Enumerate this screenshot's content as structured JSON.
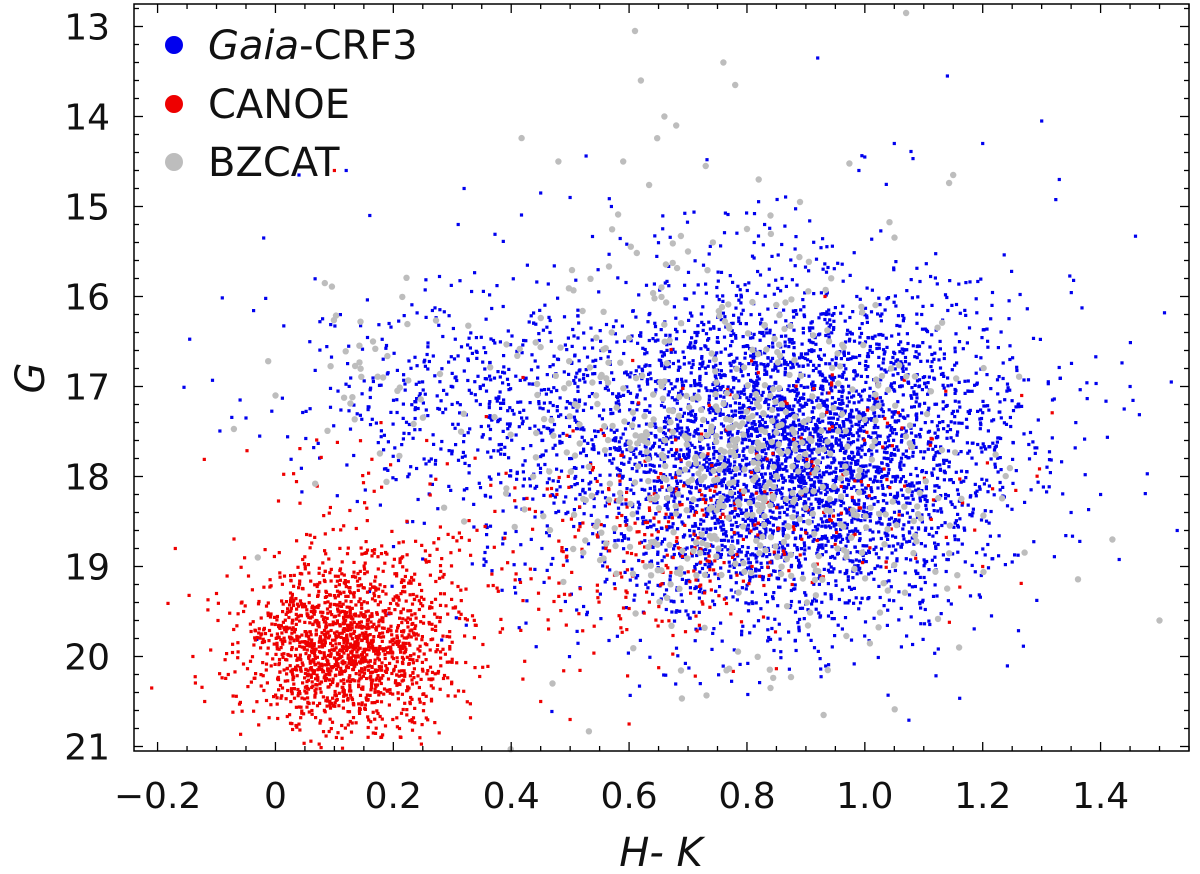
{
  "chart_data": {
    "type": "scatter",
    "title": "",
    "xlabel": "H- K",
    "ylabel": "G",
    "xlim": [
      -0.24,
      1.55
    ],
    "ylim": [
      12.75,
      21.05
    ],
    "y_inverted": true,
    "grid": false,
    "legend_position": "top-left",
    "x_ticks": [
      -0.2,
      0,
      0.2,
      0.4,
      0.6,
      0.8,
      1.0,
      1.2,
      1.4
    ],
    "x_tick_labels": [
      "−0.2",
      "0",
      "0.2",
      "0.4",
      "0.6",
      "0.8",
      "1.0",
      "1.2",
      "1.4"
    ],
    "y_ticks": [
      13,
      14,
      15,
      16,
      17,
      18,
      19,
      20,
      21
    ],
    "y_tick_labels": [
      "13",
      "14",
      "15",
      "16",
      "17",
      "18",
      "19",
      "20",
      "21"
    ],
    "series": [
      {
        "name": "Gaia-CRF3",
        "name_italic": "Gaia",
        "name_rest": "-CRF3",
        "color": "#0000ee",
        "marker": "square",
        "clusters": [
          {
            "n": 2600,
            "cx": 0.87,
            "cy": 17.9,
            "sx": 0.17,
            "sy": 0.85
          },
          {
            "n": 1500,
            "cx": 0.78,
            "cy": 17.6,
            "sx": 0.24,
            "sy": 1.05
          },
          {
            "n": 500,
            "cx": 0.98,
            "cy": 17.2,
            "sx": 0.16,
            "sy": 0.9
          },
          {
            "n": 420,
            "cx": 0.32,
            "cy": 17.1,
            "sx": 0.17,
            "sy": 0.55
          }
        ],
        "points": [
          [
            0.92,
            13.35
          ],
          [
            1.14,
            13.55
          ],
          [
            1.05,
            14.3
          ],
          [
            1.2,
            14.3
          ],
          [
            1.3,
            14.05
          ],
          [
            1.33,
            14.7
          ],
          [
            0.45,
            14.85
          ],
          [
            0.5,
            14.9
          ],
          [
            0.57,
            15.0
          ],
          [
            0.32,
            14.8
          ],
          [
            0.04,
            14.65
          ],
          [
            -0.02,
            15.35
          ],
          [
            0.16,
            15.1
          ],
          [
            0.31,
            15.2
          ],
          [
            1.44,
            17.25
          ],
          [
            1.52,
            16.95
          ],
          [
            1.45,
            17.0
          ],
          [
            1.53,
            18.6
          ],
          [
            1.4,
            18.2
          ],
          [
            1.25,
            18.95
          ],
          [
            1.35,
            18.4
          ],
          [
            -0.05,
            17.35
          ],
          [
            -0.06,
            17.15
          ],
          [
            0.12,
            14.6
          ],
          [
            0.83,
            15.2
          ],
          [
            0.99,
            14.6
          ],
          [
            1.0,
            14.45
          ]
        ]
      },
      {
        "name": "CANOE",
        "color": "#ee0000",
        "marker": "square",
        "clusters": [
          {
            "n": 1500,
            "cx": 0.12,
            "cy": 19.9,
            "sx": 0.085,
            "sy": 0.45
          },
          {
            "n": 230,
            "cx": 0.2,
            "cy": 19.1,
            "sx": 0.15,
            "sy": 0.75
          },
          {
            "n": 260,
            "cx": 0.66,
            "cy": 18.8,
            "sx": 0.13,
            "sy": 0.55
          },
          {
            "n": 130,
            "cx": 0.92,
            "cy": 18.0,
            "sx": 0.18,
            "sy": 0.7
          }
        ],
        "points": [
          [
            -0.21,
            20.35
          ],
          [
            -0.17,
            18.8
          ],
          [
            -0.14,
            20.0
          ],
          [
            -0.12,
            20.5
          ],
          [
            -0.1,
            19.3
          ],
          [
            0.6,
            20.75
          ],
          [
            0.5,
            20.7
          ],
          [
            0.45,
            20.5
          ],
          [
            0.1,
            14.6
          ],
          [
            1.2,
            19.0
          ],
          [
            -0.08,
            20.2
          ],
          [
            0.42,
            16.9
          ]
        ]
      },
      {
        "name": "BZCAT",
        "color": "#bdbdbd",
        "marker": "circle",
        "clusters": [
          {
            "n": 480,
            "cx": 0.8,
            "cy": 18.0,
            "sx": 0.17,
            "sy": 0.95
          },
          {
            "n": 130,
            "cx": 0.68,
            "cy": 17.0,
            "sx": 0.2,
            "sy": 1.0
          },
          {
            "n": 40,
            "cx": 0.17,
            "cy": 16.8,
            "sx": 0.1,
            "sy": 0.5
          }
        ],
        "points": [
          [
            1.07,
            12.85
          ],
          [
            0.61,
            13.05
          ],
          [
            0.62,
            13.6
          ],
          [
            0.78,
            13.65
          ],
          [
            0.76,
            13.4
          ],
          [
            0.48,
            14.5
          ],
          [
            0.59,
            14.5
          ],
          [
            0.66,
            14.0
          ],
          [
            0.68,
            14.1
          ],
          [
            0.73,
            14.55
          ],
          [
            0.82,
            14.7
          ],
          [
            1.15,
            14.65
          ],
          [
            1.42,
            18.7
          ],
          [
            1.5,
            19.6
          ],
          [
            1.16,
            19.9
          ],
          [
            0.93,
            20.65
          ],
          [
            0.84,
            20.35
          ],
          [
            0.47,
            20.3
          ],
          [
            -0.03,
            18.9
          ],
          [
            0.0,
            17.1
          ],
          [
            0.32,
            18.5
          ],
          [
            0.84,
            15.1
          ],
          [
            0.89,
            14.95
          ],
          [
            0.8,
            15.25
          ],
          [
            0.7,
            15.5
          ]
        ]
      }
    ]
  }
}
